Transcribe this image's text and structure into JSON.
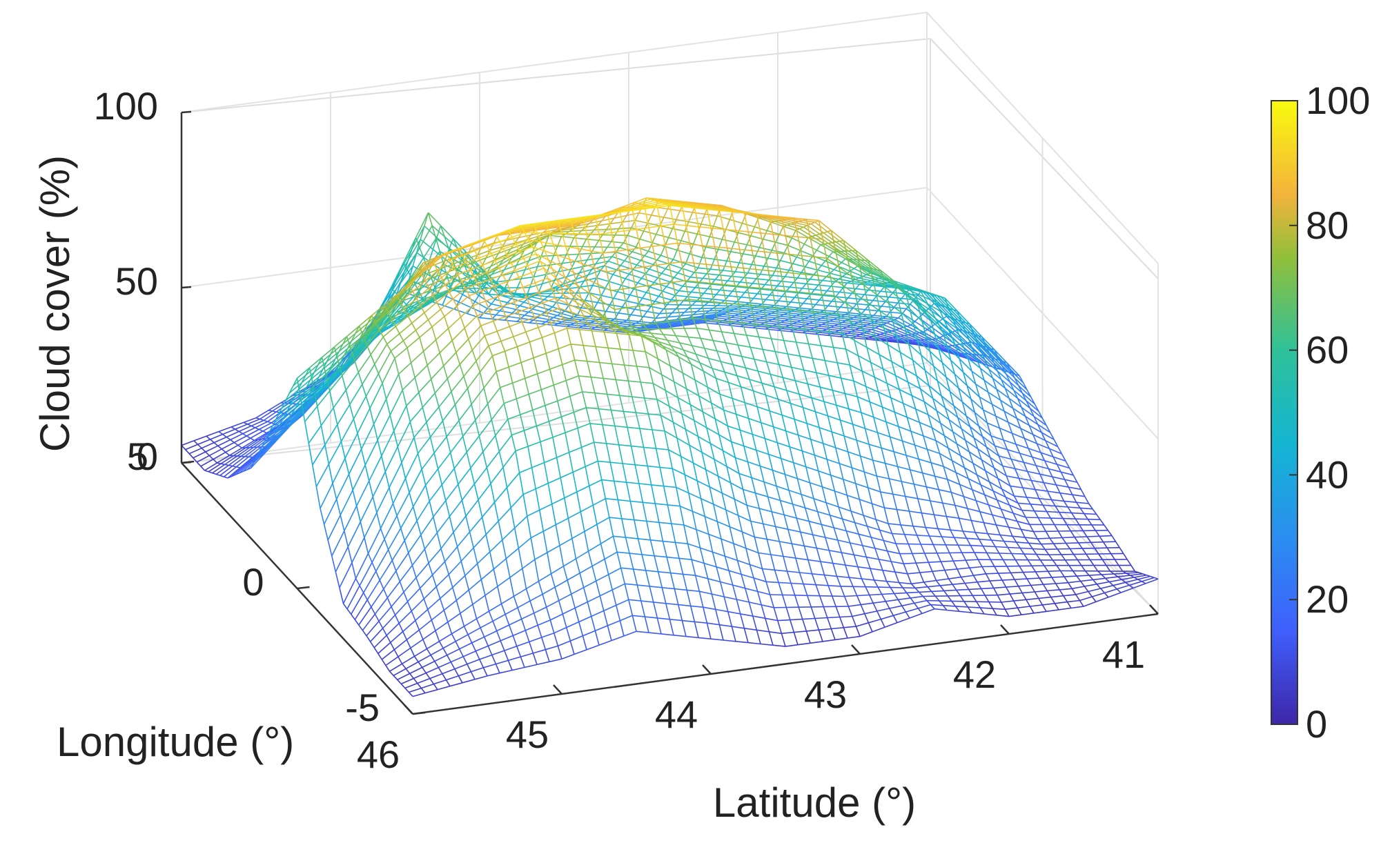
{
  "chart_data": {
    "type": "surface-mesh",
    "xlabel": "Latitude (°)",
    "ylabel": "Longitude (°)",
    "zlabel": "Cloud cover (%)",
    "xticks": [
      46,
      45,
      44,
      43,
      42,
      41
    ],
    "yticks": [
      -5,
      0,
      5
    ],
    "zticks": [
      0,
      50,
      100
    ],
    "xlim": [
      41,
      46
    ],
    "ylim": [
      -5,
      5
    ],
    "zlim": [
      0,
      100
    ],
    "grid": true,
    "colormap": "parula",
    "colorbar": {
      "ticks": [
        0,
        20,
        40,
        60,
        80,
        100
      ],
      "limits": [
        0,
        100
      ],
      "placement": "right"
    },
    "latitude": [
      46,
      45.5,
      45,
      44.5,
      44,
      43.5,
      43,
      42.5,
      42,
      41.5,
      41
    ],
    "longitude": [
      -5,
      -4,
      -3,
      -2,
      -1,
      0,
      1,
      2,
      3,
      4,
      5
    ],
    "cloud_cover": [
      [
        5,
        5,
        8,
        10,
        30,
        60,
        40,
        20,
        10,
        5,
        5
      ],
      [
        8,
        15,
        30,
        50,
        70,
        75,
        55,
        40,
        25,
        15,
        10
      ],
      [
        10,
        25,
        55,
        75,
        85,
        90,
        80,
        60,
        45,
        30,
        20
      ],
      [
        15,
        35,
        60,
        80,
        90,
        95,
        85,
        65,
        55,
        70,
        40
      ],
      [
        10,
        30,
        55,
        75,
        70,
        95,
        85,
        75,
        50,
        45,
        30
      ],
      [
        5,
        20,
        40,
        60,
        70,
        95,
        90,
        70,
        55,
        35,
        25
      ],
      [
        5,
        15,
        30,
        50,
        65,
        90,
        85,
        60,
        45,
        30,
        20
      ],
      [
        10,
        10,
        20,
        40,
        60,
        85,
        75,
        55,
        40,
        30,
        20
      ],
      [
        5,
        10,
        15,
        30,
        45,
        65,
        60,
        50,
        35,
        25,
        15
      ],
      [
        5,
        8,
        10,
        15,
        25,
        40,
        50,
        45,
        30,
        20,
        10
      ],
      [
        10,
        5,
        8,
        10,
        15,
        20,
        25,
        20,
        15,
        10,
        5
      ]
    ]
  }
}
